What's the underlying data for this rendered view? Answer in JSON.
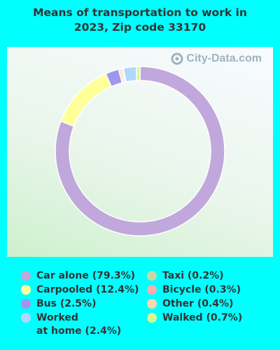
{
  "title": "Means of transportation to work in 2023, Zip code 33170",
  "watermark": "City-Data.com",
  "chart_data": {
    "type": "pie",
    "subtype": "donut",
    "title": "Means of transportation to work in 2023, Zip code 33170",
    "series": [
      {
        "name": "Car alone",
        "value": 79.3,
        "label": "Car alone (79.3%)",
        "color": "#c0a8dc"
      },
      {
        "name": "Carpooled",
        "value": 12.4,
        "label": "Carpooled (12.4%)",
        "color": "#ffff99"
      },
      {
        "name": "Bus",
        "value": 2.5,
        "label": "Bus (2.5%)",
        "color": "#9f96ee"
      },
      {
        "name": "Worked at home",
        "value": 2.4,
        "label": "Worked\nat home (2.4%)",
        "color": "#b0d8ff"
      },
      {
        "name": "Taxi",
        "value": 0.2,
        "label": "Taxi (0.2%)",
        "color": "#c6d8a8"
      },
      {
        "name": "Bicycle",
        "value": 0.3,
        "label": "Bicycle (0.3%)",
        "color": "#f4b0b0"
      },
      {
        "name": "Other",
        "value": 0.4,
        "label": "Other (0.4%)",
        "color": "#f8d8b0"
      },
      {
        "name": "Walked",
        "value": 0.7,
        "label": "Walked (0.7%)",
        "color": "#d8f890"
      }
    ],
    "legend_placement": "bottom",
    "legend_order": [
      "Car alone",
      "Carpooled",
      "Bus",
      "Worked at home",
      "Taxi",
      "Bicycle",
      "Other",
      "Walked"
    ],
    "segment_order": [
      "Car alone",
      "Carpooled",
      "Bus",
      "Other",
      "Bicycle",
      "Taxi",
      "Worked at home",
      "Walked"
    ]
  }
}
